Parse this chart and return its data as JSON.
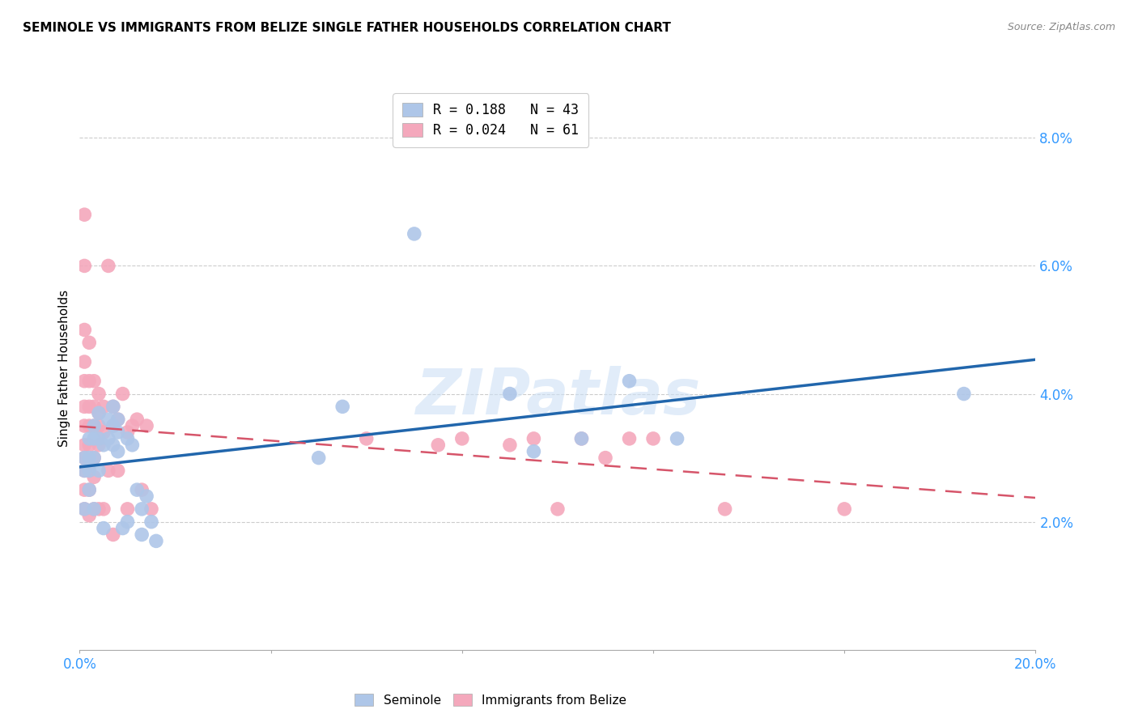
{
  "title": "SEMINOLE VS IMMIGRANTS FROM BELIZE SINGLE FATHER HOUSEHOLDS CORRELATION CHART",
  "source": "Source: ZipAtlas.com",
  "ylabel_label": "Single Father Households",
  "xlim": [
    0.0,
    0.2
  ],
  "ylim": [
    0.0,
    0.088
  ],
  "xticks": [
    0.0,
    0.04,
    0.08,
    0.12,
    0.16,
    0.2
  ],
  "yticks": [
    0.0,
    0.02,
    0.04,
    0.06,
    0.08
  ],
  "blue_r": 0.188,
  "blue_n": 43,
  "pink_r": 0.024,
  "pink_n": 61,
  "blue_color": "#aec6e8",
  "pink_color": "#f4a8bc",
  "blue_line_color": "#2166ac",
  "pink_line_color": "#d6556a",
  "background_color": "#ffffff",
  "grid_color": "#cccccc",
  "axis_color": "#3399ff",
  "seminole_x": [
    0.001,
    0.001,
    0.001,
    0.002,
    0.002,
    0.002,
    0.002,
    0.003,
    0.003,
    0.003,
    0.003,
    0.004,
    0.004,
    0.004,
    0.005,
    0.005,
    0.006,
    0.006,
    0.007,
    0.007,
    0.007,
    0.008,
    0.008,
    0.008,
    0.009,
    0.01,
    0.01,
    0.011,
    0.012,
    0.013,
    0.013,
    0.014,
    0.015,
    0.016,
    0.05,
    0.055,
    0.07,
    0.09,
    0.095,
    0.105,
    0.115,
    0.125,
    0.185
  ],
  "seminole_y": [
    0.03,
    0.028,
    0.022,
    0.033,
    0.03,
    0.028,
    0.025,
    0.035,
    0.033,
    0.03,
    0.022,
    0.037,
    0.033,
    0.028,
    0.032,
    0.019,
    0.036,
    0.033,
    0.038,
    0.035,
    0.032,
    0.036,
    0.034,
    0.031,
    0.019,
    0.033,
    0.02,
    0.032,
    0.025,
    0.022,
    0.018,
    0.024,
    0.02,
    0.017,
    0.03,
    0.038,
    0.065,
    0.04,
    0.031,
    0.033,
    0.042,
    0.033,
    0.04
  ],
  "belize_x": [
    0.001,
    0.001,
    0.001,
    0.001,
    0.001,
    0.001,
    0.001,
    0.001,
    0.001,
    0.001,
    0.001,
    0.001,
    0.002,
    0.002,
    0.002,
    0.002,
    0.002,
    0.002,
    0.002,
    0.002,
    0.003,
    0.003,
    0.003,
    0.003,
    0.003,
    0.003,
    0.004,
    0.004,
    0.004,
    0.004,
    0.004,
    0.005,
    0.005,
    0.005,
    0.006,
    0.006,
    0.007,
    0.007,
    0.007,
    0.008,
    0.008,
    0.009,
    0.01,
    0.01,
    0.011,
    0.012,
    0.013,
    0.014,
    0.015,
    0.06,
    0.075,
    0.08,
    0.09,
    0.095,
    0.1,
    0.105,
    0.11,
    0.115,
    0.12,
    0.135,
    0.16
  ],
  "belize_y": [
    0.068,
    0.06,
    0.05,
    0.045,
    0.042,
    0.038,
    0.035,
    0.032,
    0.03,
    0.028,
    0.025,
    0.022,
    0.048,
    0.042,
    0.038,
    0.035,
    0.032,
    0.028,
    0.025,
    0.021,
    0.042,
    0.038,
    0.035,
    0.03,
    0.027,
    0.022,
    0.04,
    0.037,
    0.035,
    0.032,
    0.022,
    0.038,
    0.034,
    0.022,
    0.06,
    0.028,
    0.038,
    0.035,
    0.018,
    0.036,
    0.028,
    0.04,
    0.034,
    0.022,
    0.035,
    0.036,
    0.025,
    0.035,
    0.022,
    0.033,
    0.032,
    0.033,
    0.032,
    0.033,
    0.022,
    0.033,
    0.03,
    0.033,
    0.033,
    0.022,
    0.022
  ]
}
